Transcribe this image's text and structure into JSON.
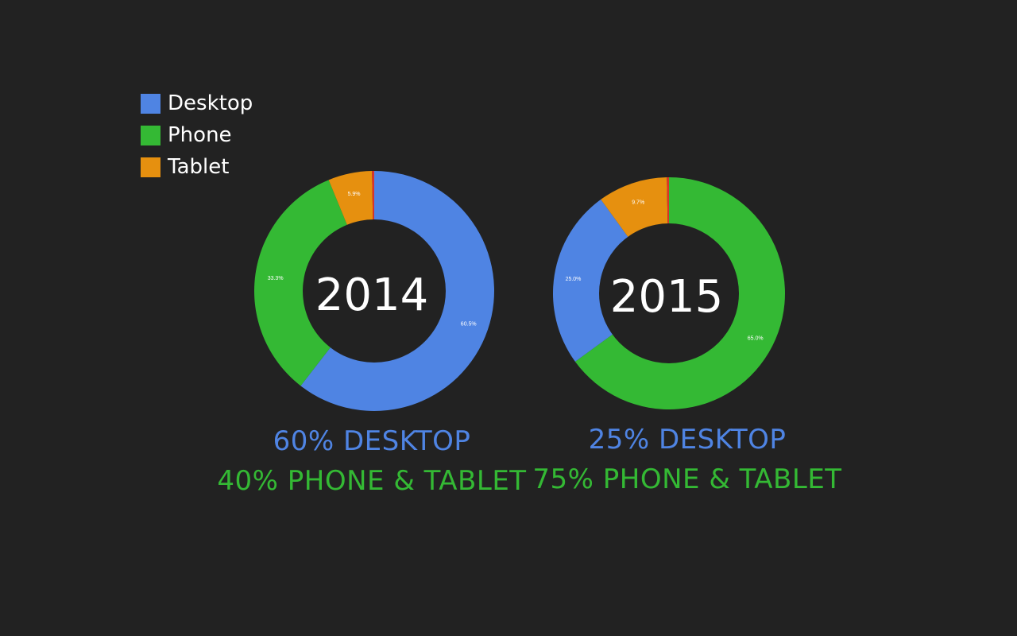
{
  "colors": {
    "background": "#222222",
    "desktop": "#4f84e3",
    "phone": "#34b934",
    "tablet": "#e6900f",
    "other": "#d9342b",
    "hole": "#222222",
    "text": "#ffffff"
  },
  "legend": [
    {
      "label": "Desktop",
      "color": "#4f84e3"
    },
    {
      "label": "Phone",
      "color": "#34b934"
    },
    {
      "label": "Tablet",
      "color": "#e6900f"
    }
  ],
  "chart_data": [
    {
      "type": "pie",
      "title": "2014",
      "slices": [
        {
          "name": "Desktop",
          "value": 60.5,
          "label": "60.5%",
          "color": "#4f84e3"
        },
        {
          "name": "Phone",
          "value": 33.3,
          "label": "33.3%",
          "color": "#34b934"
        },
        {
          "name": "Tablet",
          "value": 5.9,
          "label": "5.9%",
          "color": "#e6900f"
        },
        {
          "name": "Other",
          "value": 0.3,
          "label": "",
          "color": "#d9342b"
        }
      ]
    },
    {
      "type": "pie",
      "title": "2015",
      "slices": [
        {
          "name": "Phone",
          "value": 65.0,
          "label": "65.0%",
          "color": "#34b934"
        },
        {
          "name": "Desktop",
          "value": 25.0,
          "label": "25.0%",
          "color": "#4f84e3"
        },
        {
          "name": "Tablet",
          "value": 9.7,
          "label": "9.7%",
          "color": "#e6900f"
        },
        {
          "name": "Other",
          "value": 0.3,
          "label": "",
          "color": "#d9342b"
        }
      ]
    }
  ],
  "captions": [
    {
      "line1": "60% DESKTOP",
      "line2": "40% PHONE & TABLET"
    },
    {
      "line1": "25% DESKTOP",
      "line2": "75% PHONE & TABLET"
    }
  ]
}
